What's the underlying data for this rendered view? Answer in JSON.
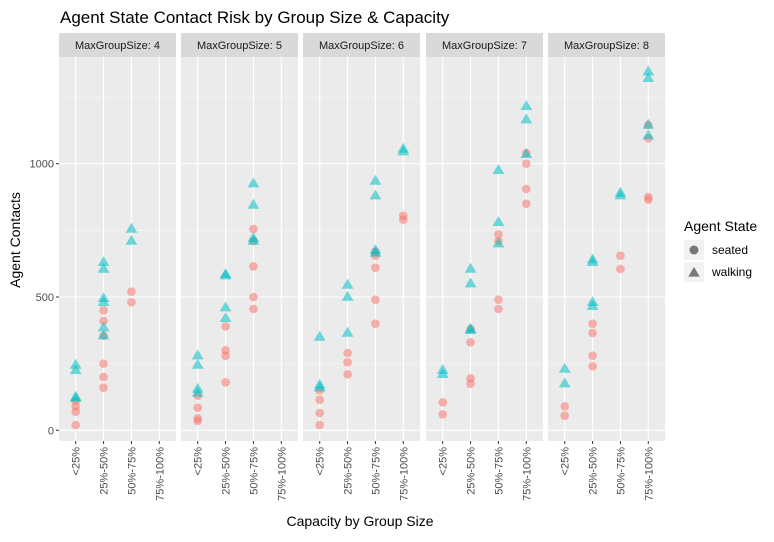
{
  "chart_data": {
    "type": "scatter",
    "title": "Agent State Contact Risk by Group Size & Capacity",
    "xlabel": "Capacity by Group Size",
    "ylabel": "Agent Contacts",
    "categories": [
      "<25%",
      "25%-50%",
      "50%-75%",
      "75%-100%"
    ],
    "y_ticks": [
      0,
      500,
      1000
    ],
    "ylim": [
      -40,
      1400
    ],
    "grid": true,
    "legend": {
      "title": "Agent State",
      "position": "right",
      "entries": [
        {
          "label": "seated",
          "shape": "circle",
          "color": "#F8766D"
        },
        {
          "label": "walking",
          "shape": "triangle",
          "color": "#00BFC4"
        }
      ]
    },
    "panels": [
      {
        "label": "MaxGroupSize: 4",
        "series": [
          {
            "name": "seated",
            "points": [
              {
                "x": "<25%",
                "y": 20
              },
              {
                "x": "<25%",
                "y": 70
              },
              {
                "x": "<25%",
                "y": 90
              },
              {
                "x": "<25%",
                "y": 110
              },
              {
                "x": "25%-50%",
                "y": 160
              },
              {
                "x": "25%-50%",
                "y": 200
              },
              {
                "x": "25%-50%",
                "y": 250
              },
              {
                "x": "25%-50%",
                "y": 355
              },
              {
                "x": "25%-50%",
                "y": 410
              },
              {
                "x": "25%-50%",
                "y": 450
              },
              {
                "x": "50%-75%",
                "y": 480
              },
              {
                "x": "50%-75%",
                "y": 520
              }
            ]
          },
          {
            "name": "walking",
            "points": [
              {
                "x": "<25%",
                "y": 120
              },
              {
                "x": "<25%",
                "y": 125
              },
              {
                "x": "<25%",
                "y": 225
              },
              {
                "x": "<25%",
                "y": 245
              },
              {
                "x": "25%-50%",
                "y": 355
              },
              {
                "x": "25%-50%",
                "y": 385
              },
              {
                "x": "25%-50%",
                "y": 480
              },
              {
                "x": "25%-50%",
                "y": 495
              },
              {
                "x": "25%-50%",
                "y": 605
              },
              {
                "x": "25%-50%",
                "y": 630
              },
              {
                "x": "50%-75%",
                "y": 710
              },
              {
                "x": "50%-75%",
                "y": 755
              }
            ]
          }
        ]
      },
      {
        "label": "MaxGroupSize: 5",
        "series": [
          {
            "name": "seated",
            "points": [
              {
                "x": "<25%",
                "y": 35
              },
              {
                "x": "<25%",
                "y": 45
              },
              {
                "x": "<25%",
                "y": 85
              },
              {
                "x": "<25%",
                "y": 130
              },
              {
                "x": "25%-50%",
                "y": 180
              },
              {
                "x": "25%-50%",
                "y": 280
              },
              {
                "x": "25%-50%",
                "y": 300
              },
              {
                "x": "25%-50%",
                "y": 390
              },
              {
                "x": "50%-75%",
                "y": 455
              },
              {
                "x": "50%-75%",
                "y": 500
              },
              {
                "x": "50%-75%",
                "y": 615
              },
              {
                "x": "50%-75%",
                "y": 710
              },
              {
                "x": "50%-75%",
                "y": 755
              }
            ]
          },
          {
            "name": "walking",
            "points": [
              {
                "x": "<25%",
                "y": 140
              },
              {
                "x": "<25%",
                "y": 155
              },
              {
                "x": "<25%",
                "y": 245
              },
              {
                "x": "<25%",
                "y": 280
              },
              {
                "x": "25%-50%",
                "y": 420
              },
              {
                "x": "25%-50%",
                "y": 460
              },
              {
                "x": "25%-50%",
                "y": 580
              },
              {
                "x": "25%-50%",
                "y": 585
              },
              {
                "x": "50%-75%",
                "y": 710
              },
              {
                "x": "50%-75%",
                "y": 720
              },
              {
                "x": "50%-75%",
                "y": 845
              },
              {
                "x": "50%-75%",
                "y": 925
              }
            ]
          }
        ]
      },
      {
        "label": "MaxGroupSize: 6",
        "series": [
          {
            "name": "seated",
            "points": [
              {
                "x": "<25%",
                "y": 20
              },
              {
                "x": "<25%",
                "y": 65
              },
              {
                "x": "<25%",
                "y": 115
              },
              {
                "x": "<25%",
                "y": 150
              },
              {
                "x": "25%-50%",
                "y": 210
              },
              {
                "x": "25%-50%",
                "y": 255
              },
              {
                "x": "25%-50%",
                "y": 290
              },
              {
                "x": "50%-75%",
                "y": 400
              },
              {
                "x": "50%-75%",
                "y": 490
              },
              {
                "x": "50%-75%",
                "y": 610
              },
              {
                "x": "50%-75%",
                "y": 655
              },
              {
                "x": "50%-75%",
                "y": 670
              },
              {
                "x": "75%-100%",
                "y": 790
              },
              {
                "x": "75%-100%",
                "y": 805
              }
            ]
          },
          {
            "name": "walking",
            "points": [
              {
                "x": "<25%",
                "y": 160
              },
              {
                "x": "<25%",
                "y": 170
              },
              {
                "x": "<25%",
                "y": 350
              },
              {
                "x": "25%-50%",
                "y": 365
              },
              {
                "x": "25%-50%",
                "y": 500
              },
              {
                "x": "25%-50%",
                "y": 545
              },
              {
                "x": "50%-75%",
                "y": 665
              },
              {
                "x": "50%-75%",
                "y": 675
              },
              {
                "x": "50%-75%",
                "y": 880
              },
              {
                "x": "50%-75%",
                "y": 935
              },
              {
                "x": "75%-100%",
                "y": 1045
              },
              {
                "x": "75%-100%",
                "y": 1055
              }
            ]
          }
        ]
      },
      {
        "label": "MaxGroupSize: 7",
        "series": [
          {
            "name": "seated",
            "points": [
              {
                "x": "<25%",
                "y": 60
              },
              {
                "x": "<25%",
                "y": 105
              },
              {
                "x": "25%-50%",
                "y": 175
              },
              {
                "x": "25%-50%",
                "y": 195
              },
              {
                "x": "25%-50%",
                "y": 330
              },
              {
                "x": "25%-50%",
                "y": 380
              },
              {
                "x": "50%-75%",
                "y": 455
              },
              {
                "x": "50%-75%",
                "y": 490
              },
              {
                "x": "50%-75%",
                "y": 710
              },
              {
                "x": "50%-75%",
                "y": 735
              },
              {
                "x": "75%-100%",
                "y": 850
              },
              {
                "x": "75%-100%",
                "y": 905
              },
              {
                "x": "75%-100%",
                "y": 1000
              },
              {
                "x": "75%-100%",
                "y": 1040
              }
            ]
          },
          {
            "name": "walking",
            "points": [
              {
                "x": "<25%",
                "y": 210
              },
              {
                "x": "<25%",
                "y": 225
              },
              {
                "x": "25%-50%",
                "y": 375
              },
              {
                "x": "25%-50%",
                "y": 380
              },
              {
                "x": "25%-50%",
                "y": 550
              },
              {
                "x": "25%-50%",
                "y": 605
              },
              {
                "x": "50%-75%",
                "y": 700
              },
              {
                "x": "50%-75%",
                "y": 780
              },
              {
                "x": "50%-75%",
                "y": 975
              },
              {
                "x": "75%-100%",
                "y": 1035
              },
              {
                "x": "75%-100%",
                "y": 1165
              },
              {
                "x": "75%-100%",
                "y": 1215
              }
            ]
          }
        ]
      },
      {
        "label": "MaxGroupSize: 8",
        "series": [
          {
            "name": "seated",
            "points": [
              {
                "x": "<25%",
                "y": 55
              },
              {
                "x": "<25%",
                "y": 90
              },
              {
                "x": "25%-50%",
                "y": 240
              },
              {
                "x": "25%-50%",
                "y": 280
              },
              {
                "x": "25%-50%",
                "y": 365
              },
              {
                "x": "25%-50%",
                "y": 400
              },
              {
                "x": "50%-75%",
                "y": 605
              },
              {
                "x": "50%-75%",
                "y": 655
              },
              {
                "x": "75%-100%",
                "y": 865
              },
              {
                "x": "75%-100%",
                "y": 875
              },
              {
                "x": "75%-100%",
                "y": 1095
              },
              {
                "x": "75%-100%",
                "y": 1145
              }
            ]
          },
          {
            "name": "walking",
            "points": [
              {
                "x": "<25%",
                "y": 175
              },
              {
                "x": "<25%",
                "y": 230
              },
              {
                "x": "25%-50%",
                "y": 465
              },
              {
                "x": "25%-50%",
                "y": 480
              },
              {
                "x": "25%-50%",
                "y": 630
              },
              {
                "x": "25%-50%",
                "y": 640
              },
              {
                "x": "50%-75%",
                "y": 880
              },
              {
                "x": "50%-75%",
                "y": 890
              },
              {
                "x": "75%-100%",
                "y": 1105
              },
              {
                "x": "75%-100%",
                "y": 1145
              },
              {
                "x": "75%-100%",
                "y": 1320
              },
              {
                "x": "75%-100%",
                "y": 1345
              }
            ]
          }
        ]
      }
    ]
  }
}
